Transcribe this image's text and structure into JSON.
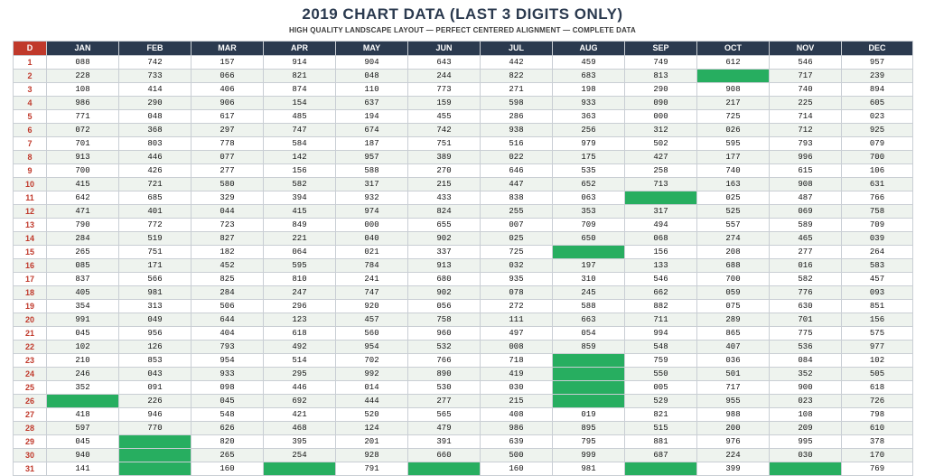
{
  "title": "2019 CHART DATA (LAST 3 DIGITS ONLY)",
  "subtitle": "HIGH QUALITY LANDSCAPE LAYOUT — PERFECT CENTERED ALIGNMENT — COMPLETE DATA",
  "colors": {
    "header": "#2b3a4f",
    "day_header": "#c0392b",
    "empty_cell": "#27ae60",
    "alt_row": "#eef3ee"
  },
  "headers": [
    "D",
    "JAN",
    "FEB",
    "MAR",
    "APR",
    "MAY",
    "JUN",
    "JUL",
    "AUG",
    "SEP",
    "OCT",
    "NOV",
    "DEC"
  ],
  "rows": [
    [
      "1",
      "088",
      "742",
      "157",
      "914",
      "904",
      "643",
      "442",
      "459",
      "749",
      "612",
      "546",
      "957"
    ],
    [
      "2",
      "228",
      "733",
      "066",
      "821",
      "048",
      "244",
      "822",
      "683",
      "813",
      "",
      "717",
      "239"
    ],
    [
      "3",
      "108",
      "414",
      "406",
      "874",
      "110",
      "773",
      "271",
      "198",
      "290",
      "908",
      "740",
      "894"
    ],
    [
      "4",
      "986",
      "290",
      "906",
      "154",
      "637",
      "159",
      "598",
      "933",
      "090",
      "217",
      "225",
      "605"
    ],
    [
      "5",
      "771",
      "048",
      "617",
      "485",
      "194",
      "455",
      "286",
      "363",
      "000",
      "725",
      "714",
      "023"
    ],
    [
      "6",
      "072",
      "368",
      "297",
      "747",
      "674",
      "742",
      "938",
      "256",
      "312",
      "026",
      "712",
      "925"
    ],
    [
      "7",
      "701",
      "803",
      "778",
      "584",
      "187",
      "751",
      "516",
      "979",
      "502",
      "595",
      "793",
      "079"
    ],
    [
      "8",
      "913",
      "446",
      "077",
      "142",
      "957",
      "389",
      "022",
      "175",
      "427",
      "177",
      "996",
      "700"
    ],
    [
      "9",
      "700",
      "426",
      "277",
      "156",
      "588",
      "270",
      "646",
      "535",
      "258",
      "740",
      "615",
      "106"
    ],
    [
      "10",
      "415",
      "721",
      "580",
      "582",
      "317",
      "215",
      "447",
      "652",
      "713",
      "163",
      "908",
      "631"
    ],
    [
      "11",
      "642",
      "685",
      "329",
      "394",
      "932",
      "433",
      "838",
      "063",
      "",
      "025",
      "487",
      "766"
    ],
    [
      "12",
      "471",
      "401",
      "044",
      "415",
      "974",
      "824",
      "255",
      "353",
      "317",
      "525",
      "069",
      "758"
    ],
    [
      "13",
      "790",
      "772",
      "723",
      "849",
      "000",
      "655",
      "007",
      "709",
      "494",
      "557",
      "589",
      "709"
    ],
    [
      "14",
      "284",
      "519",
      "827",
      "221",
      "040",
      "902",
      "025",
      "650",
      "068",
      "274",
      "465",
      "039"
    ],
    [
      "15",
      "265",
      "751",
      "182",
      "064",
      "021",
      "337",
      "725",
      "",
      "156",
      "208",
      "277",
      "264"
    ],
    [
      "16",
      "085",
      "171",
      "452",
      "595",
      "784",
      "913",
      "032",
      "197",
      "133",
      "688",
      "016",
      "583"
    ],
    [
      "17",
      "837",
      "566",
      "825",
      "810",
      "241",
      "680",
      "935",
      "310",
      "546",
      "700",
      "582",
      "457"
    ],
    [
      "18",
      "405",
      "981",
      "284",
      "247",
      "747",
      "902",
      "078",
      "245",
      "662",
      "059",
      "776",
      "093"
    ],
    [
      "19",
      "354",
      "313",
      "506",
      "296",
      "920",
      "056",
      "272",
      "588",
      "882",
      "075",
      "630",
      "851"
    ],
    [
      "20",
      "991",
      "049",
      "644",
      "123",
      "457",
      "758",
      "111",
      "663",
      "711",
      "289",
      "701",
      "156"
    ],
    [
      "21",
      "045",
      "956",
      "404",
      "618",
      "560",
      "960",
      "497",
      "054",
      "994",
      "865",
      "775",
      "575"
    ],
    [
      "22",
      "102",
      "126",
      "793",
      "492",
      "954",
      "532",
      "008",
      "859",
      "548",
      "407",
      "536",
      "977"
    ],
    [
      "23",
      "210",
      "853",
      "954",
      "514",
      "702",
      "766",
      "718",
      "",
      "759",
      "036",
      "084",
      "102"
    ],
    [
      "24",
      "246",
      "043",
      "933",
      "295",
      "992",
      "890",
      "419",
      "",
      "550",
      "501",
      "352",
      "505"
    ],
    [
      "25",
      "352",
      "091",
      "098",
      "446",
      "014",
      "530",
      "030",
      "",
      "005",
      "717",
      "900",
      "618"
    ],
    [
      "26",
      "",
      "226",
      "045",
      "692",
      "444",
      "277",
      "215",
      "",
      "529",
      "955",
      "023",
      "726"
    ],
    [
      "27",
      "418",
      "946",
      "548",
      "421",
      "520",
      "565",
      "408",
      "019",
      "821",
      "988",
      "108",
      "798"
    ],
    [
      "28",
      "597",
      "770",
      "626",
      "468",
      "124",
      "479",
      "986",
      "895",
      "515",
      "200",
      "209",
      "610"
    ],
    [
      "29",
      "045",
      "",
      "820",
      "395",
      "201",
      "391",
      "639",
      "795",
      "881",
      "976",
      "995",
      "378"
    ],
    [
      "30",
      "940",
      "",
      "265",
      "254",
      "928",
      "660",
      "500",
      "999",
      "687",
      "224",
      "030",
      "170"
    ],
    [
      "31",
      "141",
      "",
      "160",
      "",
      "791",
      "",
      "160",
      "981",
      "",
      "399",
      "",
      "769"
    ]
  ]
}
